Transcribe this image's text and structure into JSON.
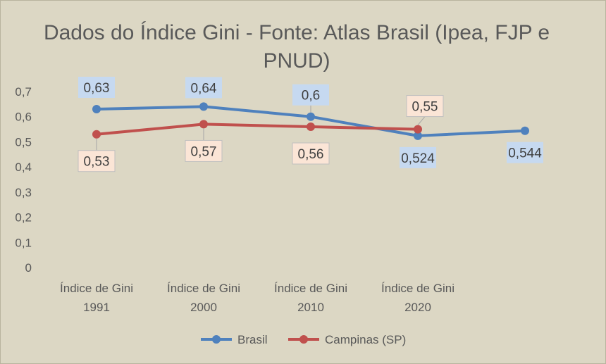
{
  "chart_data": {
    "type": "line",
    "title": "Dados do Índice Gini - Fonte: Atlas Brasil (Ipea, FJP e PNUD)",
    "categories": [
      [
        "Índice de Gini",
        "1991"
      ],
      [
        "Índice de Gini",
        "2000"
      ],
      [
        "Índice de Gini",
        "2010"
      ],
      [
        "Índice de Gini",
        "2020"
      ],
      [
        "",
        ""
      ]
    ],
    "y_ticks": [
      "0",
      "0,1",
      "0,2",
      "0,3",
      "0,4",
      "0,5",
      "0,6",
      "0,7"
    ],
    "ylim": [
      0,
      0.7
    ],
    "grid": false,
    "legend_position": "bottom",
    "series": [
      {
        "name": "Brasil",
        "color": "#4f81bd",
        "label_bg": "#c6d9f0",
        "values": [
          0.63,
          0.64,
          0.6,
          0.524,
          0.544
        ],
        "labels": [
          "0,63",
          "0,64",
          "0,6",
          "0,524",
          "0,544"
        ]
      },
      {
        "name": "Campinas (SP)",
        "color": "#c0504d",
        "label_bg": "#fbe5d6",
        "values": [
          0.53,
          0.57,
          0.56,
          0.55,
          null
        ],
        "labels": [
          "0,53",
          "0,57",
          "0,56",
          "0,55",
          ""
        ]
      }
    ]
  }
}
